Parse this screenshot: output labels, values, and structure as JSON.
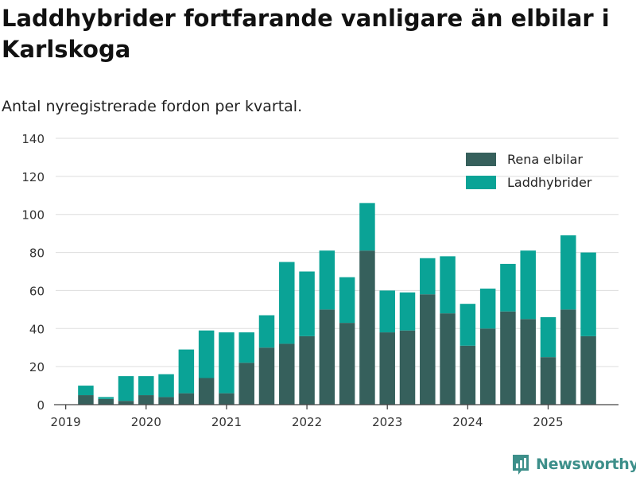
{
  "title": "Laddhybrider fortfarande vanligare än elbilar i Karlskoga",
  "subtitle": "Antal nyregistrerade fordon per kvartal.",
  "brand": {
    "name": "Newsworthy",
    "icon": "newsworthy-logo-icon",
    "color": "#3d8f8a"
  },
  "colors": {
    "elbilar": "#36605c",
    "laddhybrider": "#0aa396",
    "grid": "#dddddd",
    "axis": "#444444"
  },
  "chart_data": {
    "type": "bar",
    "stacked": true,
    "title": "Laddhybrider fortfarande vanligare än elbilar i Karlskoga",
    "subtitle": "Antal nyregistrerade fordon per kvartal.",
    "xlabel": "",
    "ylabel": "",
    "ylim": [
      0,
      140
    ],
    "yticks": [
      0,
      20,
      40,
      60,
      80,
      100,
      120,
      140
    ],
    "x_tick_labels": [
      "2019",
      "2020",
      "2021",
      "2022",
      "2023",
      "2024",
      "2025"
    ],
    "x_range": [
      2018.875,
      2025.875
    ],
    "grid": true,
    "legend_position": "top-right",
    "x": [
      2019.25,
      2019.5,
      2019.75,
      2020.0,
      2020.25,
      2020.5,
      2020.75,
      2021.0,
      2021.25,
      2021.5,
      2021.75,
      2022.0,
      2022.25,
      2022.5,
      2022.75,
      2023.0,
      2023.25,
      2023.5,
      2023.75,
      2024.0,
      2024.25,
      2024.5,
      2024.75,
      2025.0,
      2025.25,
      2025.5
    ],
    "series": [
      {
        "name": "Rena elbilar",
        "values": [
          5,
          3,
          2,
          5,
          4,
          6,
          14,
          6,
          22,
          30,
          32,
          36,
          50,
          43,
          81,
          38,
          39,
          58,
          48,
          31,
          40,
          49,
          45,
          25,
          50,
          36
        ]
      },
      {
        "name": "Laddhybrider",
        "values": [
          5,
          1,
          13,
          10,
          12,
          23,
          25,
          32,
          16,
          17,
          43,
          34,
          31,
          24,
          25,
          22,
          20,
          19,
          30,
          22,
          21,
          25,
          36,
          21,
          39,
          44
        ]
      }
    ]
  }
}
